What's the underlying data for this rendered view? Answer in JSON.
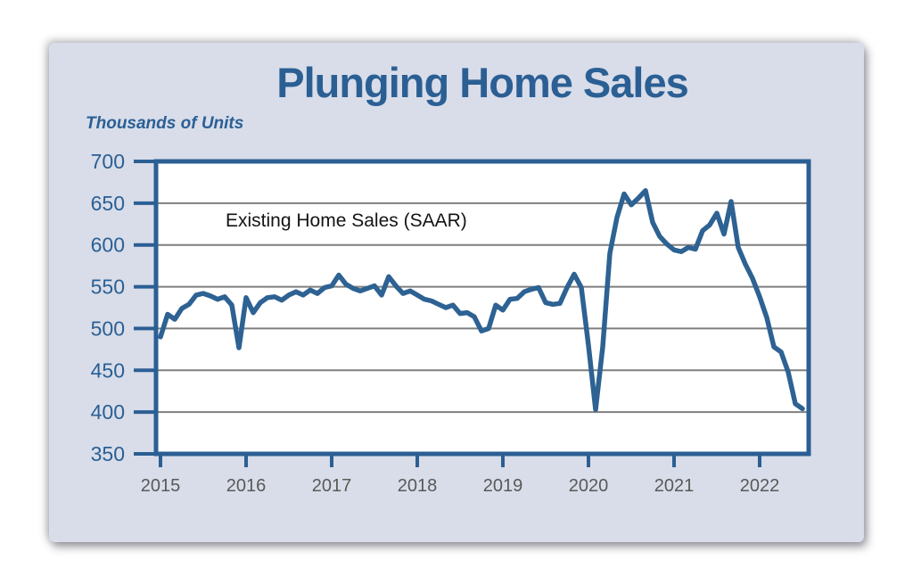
{
  "page": {
    "background_color": "#ffffff"
  },
  "card": {
    "background_color": "#d8dde9"
  },
  "chart": {
    "title": "Plunging Home Sales",
    "units_label": "Thousands of Units",
    "series_label": "Existing Home Sales (SAAR)"
  },
  "chart_data": {
    "type": "line",
    "title": "Plunging Home Sales",
    "ylabel": "Thousands of Units",
    "xlabel": "",
    "legend_position": "annotation-inside-top-left",
    "grid": "horizontal-only",
    "ylim": [
      350,
      700
    ],
    "yticks": [
      350,
      400,
      450,
      500,
      550,
      600,
      650,
      700
    ],
    "xticks": [
      2015,
      2016,
      2017,
      2018,
      2019,
      2020,
      2021,
      2022
    ],
    "x_start_year": 2015.0,
    "x_step_years": 0.083333,
    "series": [
      {
        "name": "Existing Home Sales (SAAR)",
        "values": [
          490,
          517,
          511,
          524,
          529,
          540,
          542,
          539,
          535,
          538,
          528,
          477,
          537,
          519,
          531,
          537,
          538,
          534,
          540,
          544,
          540,
          546,
          542,
          549,
          551,
          564,
          553,
          548,
          545,
          548,
          551,
          540,
          562,
          551,
          542,
          545,
          540,
          535,
          533,
          529,
          525,
          528,
          518,
          519,
          514,
          497,
          500,
          528,
          522,
          535,
          536,
          544,
          547,
          549,
          531,
          529,
          530,
          549,
          565,
          549,
          480,
          403,
          478,
          590,
          633,
          661,
          648,
          656,
          665,
          627,
          610,
          601,
          594,
          592,
          597,
          595,
          617,
          624,
          638,
          613,
          652,
          597,
          577,
          560,
          538,
          513,
          478,
          472,
          448,
          410,
          404
        ]
      }
    ],
    "colors": {
      "line": "#2d6293",
      "axis_and_border": "#2b5f94",
      "gridline": "#7f7f7f",
      "y_tick_label": "#2b5f94",
      "x_tick_label": "#595959",
      "plot_background": "#ffffff",
      "title": "#2b5f94",
      "annotation_text": "#141414"
    }
  }
}
